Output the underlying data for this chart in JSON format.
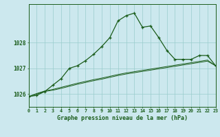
{
  "title": "Graphe pression niveau de la mer (hPa)",
  "xlabel": "Graphe pression niveau de la mer (hPa)",
  "background_color": "#cce8ee",
  "grid_color": "#99cccc",
  "line_color": "#1a5c1a",
  "x": [
    0,
    1,
    2,
    3,
    4,
    5,
    6,
    7,
    8,
    9,
    10,
    11,
    12,
    13,
    14,
    15,
    16,
    17,
    18,
    19,
    20,
    21,
    22,
    23
  ],
  "y_main": [
    1025.9,
    1025.95,
    1026.1,
    1026.35,
    1026.6,
    1027.0,
    1027.1,
    1027.3,
    1027.55,
    1027.85,
    1028.2,
    1028.85,
    1029.05,
    1029.15,
    1028.6,
    1028.65,
    1028.2,
    1027.7,
    1027.35,
    1027.35,
    1027.35,
    1027.5,
    1027.5,
    1027.1
  ],
  "y_line2": [
    1025.9,
    1026.0,
    1026.1,
    1026.15,
    1026.22,
    1026.3,
    1026.38,
    1026.45,
    1026.52,
    1026.58,
    1026.65,
    1026.72,
    1026.78,
    1026.83,
    1026.88,
    1026.93,
    1026.98,
    1027.03,
    1027.08,
    1027.13,
    1027.18,
    1027.23,
    1027.28,
    1027.1
  ],
  "y_line3": [
    1025.9,
    1026.02,
    1026.12,
    1026.18,
    1026.26,
    1026.34,
    1026.42,
    1026.49,
    1026.56,
    1026.62,
    1026.69,
    1026.76,
    1026.82,
    1026.87,
    1026.92,
    1026.97,
    1027.02,
    1027.07,
    1027.12,
    1027.17,
    1027.22,
    1027.27,
    1027.32,
    1027.1
  ],
  "yticks": [
    1026,
    1027,
    1028
  ],
  "ylim": [
    1025.5,
    1029.5
  ],
  "xlim": [
    0,
    23
  ]
}
